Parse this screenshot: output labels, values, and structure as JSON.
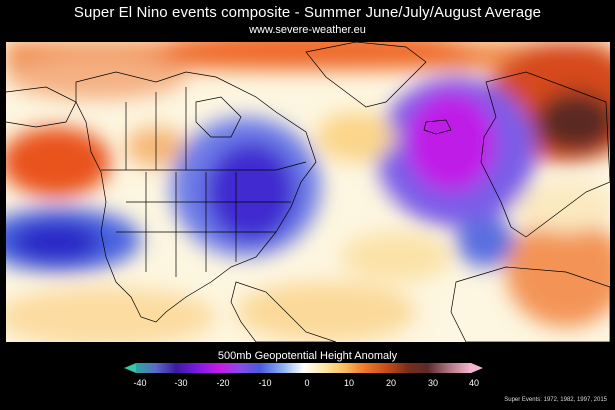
{
  "title": "Super El Nino events composite - Summer June/July/August Average",
  "subtitle": "www.severe-weather.eu",
  "legend": {
    "title": "500mb Geopotential Height Anomaly",
    "ticks": [
      "-40",
      "-30",
      "-20",
      "-10",
      "0",
      "10",
      "20",
      "30",
      "40"
    ]
  },
  "footnote": "Super Events: 1972, 1982, 1997, 2015",
  "colors": {
    "min_arrow": "#39c6a4",
    "max_arrow": "#f2b6cf",
    "neg_strong": "#b100e8",
    "neg_mid": "#3a22c8",
    "neg_weak": "#7fa6f2",
    "neutral": "#ffffff",
    "pos_weak": "#fde7a0",
    "pos_mid": "#ee5a1f",
    "pos_strong": "#7a2e1a"
  }
}
